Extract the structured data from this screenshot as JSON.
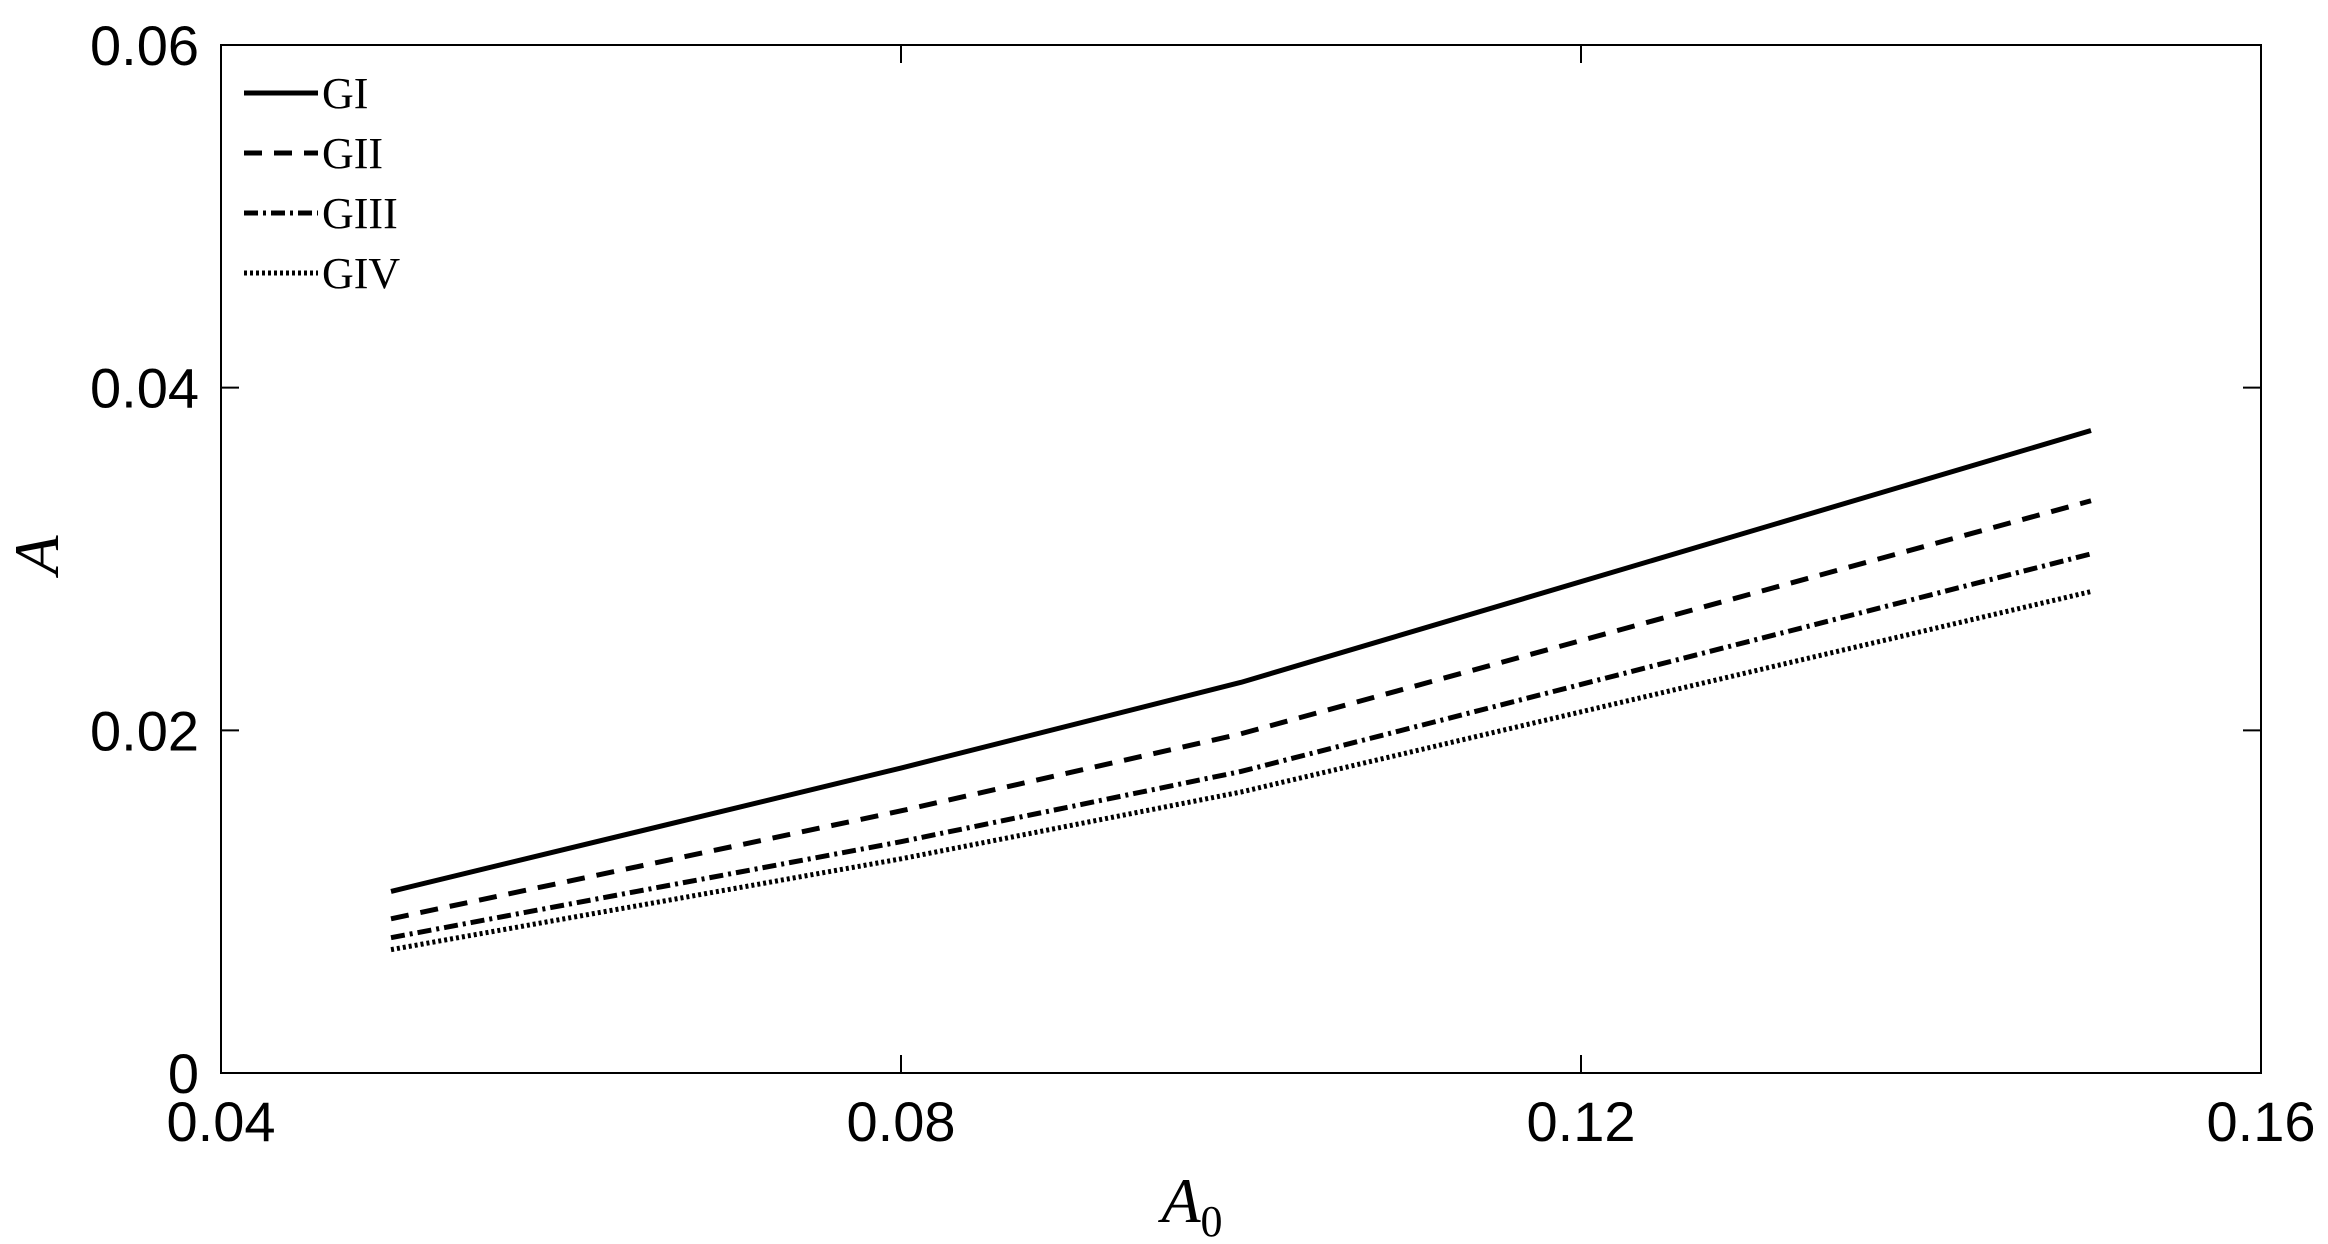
{
  "chart_data": {
    "type": "line",
    "title": "",
    "xlabel": "A",
    "xlabel_sub": "0",
    "ylabel": "A",
    "xlim": [
      0.04,
      0.16
    ],
    "ylim": [
      0,
      0.06
    ],
    "xticks": [
      0.04,
      0.08,
      0.12,
      0.16
    ],
    "yticks": [
      0,
      0.02,
      0.04,
      0.06
    ],
    "xtick_labels": [
      "0.04",
      "0.08",
      "0.12",
      "0.16"
    ],
    "ytick_labels": [
      "0",
      "0.02",
      "0.04",
      "0.06"
    ],
    "grid": false,
    "legend_position": "top-left",
    "x": [
      0.05,
      0.08,
      0.1,
      0.15
    ],
    "series": [
      {
        "name": "GI",
        "style": "solid",
        "values": [
          0.0106,
          0.0178,
          0.0228,
          0.0375
        ]
      },
      {
        "name": "GII",
        "style": "dashed",
        "values": [
          0.009,
          0.0153,
          0.0198,
          0.0334
        ]
      },
      {
        "name": "GIII",
        "style": "dash-dot",
        "values": [
          0.0079,
          0.0135,
          0.0176,
          0.0303
        ]
      },
      {
        "name": "GIV",
        "style": "dotted",
        "values": [
          0.0072,
          0.0125,
          0.0164,
          0.0281
        ]
      }
    ]
  },
  "colors": {
    "line": "#000000",
    "axis": "#000000",
    "background": "#ffffff"
  }
}
